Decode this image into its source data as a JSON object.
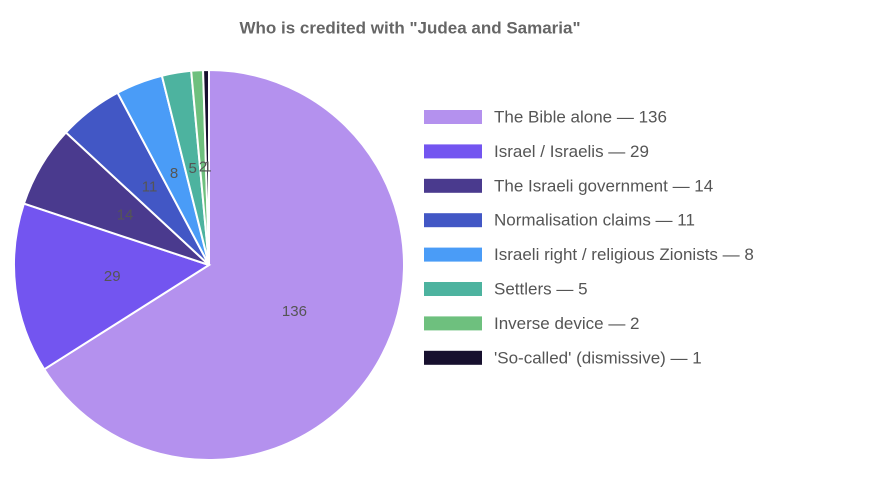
{
  "chart_data": {
    "type": "pie",
    "title": "Who is credited with \"Judea and Samaria\"",
    "categories": [
      "The Bible alone — 136",
      "Israel / Israelis — 29",
      "The Israeli government — 14",
      "Normalisation claims — 11",
      "Israeli right / religious Zionists — 8",
      "Settlers — 5",
      "Inverse device — 2",
      "'So-called' (dismissive) — 1"
    ],
    "values": [
      136,
      29,
      14,
      11,
      8,
      5,
      2,
      1
    ],
    "colors": [
      "#b491ee",
      "#7355f0",
      "#4a3a8e",
      "#4257c5",
      "#4a9cf7",
      "#4db39f",
      "#6ec07e",
      "#17102e"
    ],
    "legend": "right"
  }
}
